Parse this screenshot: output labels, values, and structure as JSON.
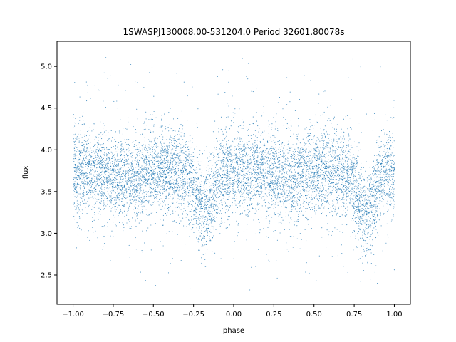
{
  "chart_data": {
    "type": "scatter",
    "title": "1SWASPJ130008.00-531204.0 Period 32601.80078s",
    "xlabel": "phase",
    "ylabel": "flux",
    "xlim": [
      -1.1,
      1.1
    ],
    "ylim": [
      2.15,
      5.3
    ],
    "x_ticks": [
      -1.0,
      -0.75,
      -0.5,
      -0.25,
      0.0,
      0.25,
      0.5,
      0.75,
      1.0
    ],
    "x_tick_labels": [
      "−1.00",
      "−0.75",
      "−0.50",
      "−0.25",
      "0.00",
      "0.25",
      "0.50",
      "0.75",
      "1.00"
    ],
    "y_ticks": [
      2.5,
      3.0,
      3.5,
      4.0,
      4.5,
      5.0
    ],
    "y_tick_labels": [
      "2.5",
      "3.0",
      "3.5",
      "4.0",
      "4.5",
      "5.0"
    ],
    "grid": false,
    "marker_color": "#1f77b4",
    "series": [
      {
        "phase_range": [
          -1.0,
          1.0
        ],
        "baseline_flux": 3.75,
        "typical_scatter": 0.25,
        "flux_range": [
          2.3,
          5.15
        ],
        "dips": [
          {
            "phase": -0.18,
            "min_flux": 3.25
          },
          {
            "phase": 0.82,
            "min_flux": 3.25
          }
        ],
        "secondary_dips": [
          {
            "phase": -0.68,
            "min_flux": 3.65
          },
          {
            "phase": 0.32,
            "min_flux": 3.65
          }
        ]
      }
    ]
  }
}
